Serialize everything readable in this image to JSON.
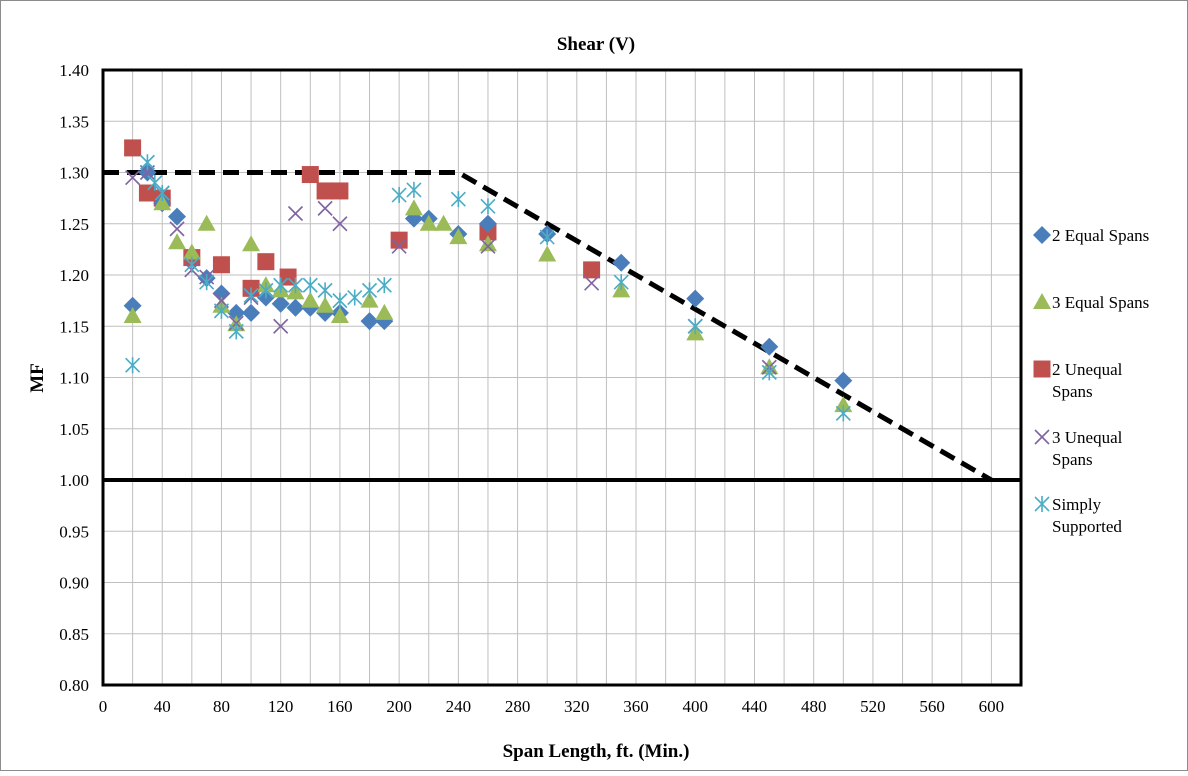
{
  "chart_data": {
    "type": "scatter",
    "title": "Shear (V)",
    "xlabel": "Span Length, ft. (Min.)",
    "ylabel": "MF",
    "xlim": [
      0,
      620
    ],
    "ylim": [
      0.8,
      1.4
    ],
    "x_ticks": [
      "0",
      "40",
      "80",
      "120",
      "160",
      "200",
      "240",
      "280",
      "320",
      "360",
      "400",
      "440",
      "480",
      "520",
      "560",
      "600"
    ],
    "y_ticks": [
      "0.80",
      "0.85",
      "0.90",
      "0.95",
      "1.00",
      "1.05",
      "1.10",
      "1.15",
      "1.20",
      "1.25",
      "1.30",
      "1.35",
      "1.40"
    ],
    "grid": true,
    "legend_position": "right",
    "series": [
      {
        "name": "2 Equal Spans",
        "marker": "diamond",
        "color": "#4A7EBB",
        "points": [
          [
            20,
            1.17
          ],
          [
            30,
            1.3
          ],
          [
            40,
            1.27
          ],
          [
            50,
            1.257
          ],
          [
            70,
            1.197
          ],
          [
            80,
            1.182
          ],
          [
            90,
            1.163
          ],
          [
            100,
            1.163
          ],
          [
            110,
            1.178
          ],
          [
            120,
            1.172
          ],
          [
            130,
            1.168
          ],
          [
            140,
            1.168
          ],
          [
            150,
            1.163
          ],
          [
            160,
            1.163
          ],
          [
            180,
            1.155
          ],
          [
            190,
            1.155
          ],
          [
            210,
            1.255
          ],
          [
            220,
            1.255
          ],
          [
            240,
            1.24
          ],
          [
            260,
            1.25
          ],
          [
            300,
            1.24
          ],
          [
            350,
            1.212
          ],
          [
            400,
            1.177
          ],
          [
            450,
            1.13
          ],
          [
            500,
            1.097
          ]
        ]
      },
      {
        "name": "3 Equal Spans",
        "marker": "triangle",
        "color": "#9BBB59",
        "points": [
          [
            20,
            1.16
          ],
          [
            40,
            1.27
          ],
          [
            50,
            1.232
          ],
          [
            60,
            1.222
          ],
          [
            70,
            1.25
          ],
          [
            80,
            1.17
          ],
          [
            90,
            1.152
          ],
          [
            100,
            1.23
          ],
          [
            110,
            1.19
          ],
          [
            120,
            1.185
          ],
          [
            130,
            1.183
          ],
          [
            140,
            1.175
          ],
          [
            150,
            1.17
          ],
          [
            160,
            1.16
          ],
          [
            180,
            1.175
          ],
          [
            190,
            1.163
          ],
          [
            210,
            1.265
          ],
          [
            220,
            1.25
          ],
          [
            230,
            1.25
          ],
          [
            240,
            1.237
          ],
          [
            260,
            1.23
          ],
          [
            300,
            1.22
          ],
          [
            350,
            1.185
          ],
          [
            400,
            1.143
          ],
          [
            450,
            1.11
          ],
          [
            500,
            1.073
          ]
        ]
      },
      {
        "name": "2 Unequal Spans",
        "marker": "square",
        "color": "#C0504D",
        "points": [
          [
            20,
            1.324
          ],
          [
            30,
            1.28
          ],
          [
            40,
            1.275
          ],
          [
            60,
            1.217
          ],
          [
            80,
            1.21
          ],
          [
            100,
            1.187
          ],
          [
            110,
            1.213
          ],
          [
            125,
            1.198
          ],
          [
            140,
            1.298
          ],
          [
            150,
            1.282
          ],
          [
            160,
            1.282
          ],
          [
            200,
            1.234
          ],
          [
            260,
            1.242
          ],
          [
            330,
            1.205
          ]
        ]
      },
      {
        "name": "3 Unequal Spans",
        "marker": "x",
        "color": "#8064A2",
        "points": [
          [
            20,
            1.295
          ],
          [
            30,
            1.3
          ],
          [
            40,
            1.28
          ],
          [
            50,
            1.245
          ],
          [
            60,
            1.205
          ],
          [
            70,
            1.198
          ],
          [
            80,
            1.175
          ],
          [
            90,
            1.153
          ],
          [
            100,
            1.178
          ],
          [
            120,
            1.15
          ],
          [
            130,
            1.26
          ],
          [
            150,
            1.265
          ],
          [
            160,
            1.25
          ],
          [
            200,
            1.228
          ],
          [
            260,
            1.228
          ],
          [
            330,
            1.192
          ],
          [
            400,
            1.15
          ],
          [
            450,
            1.11
          ]
        ]
      },
      {
        "name": "Simply Supported",
        "marker": "asterisk",
        "color": "#4BACC6",
        "points": [
          [
            20,
            1.112
          ],
          [
            30,
            1.31
          ],
          [
            35,
            1.29
          ],
          [
            40,
            1.28
          ],
          [
            60,
            1.21
          ],
          [
            70,
            1.193
          ],
          [
            80,
            1.165
          ],
          [
            90,
            1.145
          ],
          [
            100,
            1.18
          ],
          [
            110,
            1.185
          ],
          [
            120,
            1.19
          ],
          [
            130,
            1.19
          ],
          [
            140,
            1.19
          ],
          [
            150,
            1.185
          ],
          [
            160,
            1.175
          ],
          [
            170,
            1.178
          ],
          [
            180,
            1.185
          ],
          [
            190,
            1.19
          ],
          [
            200,
            1.278
          ],
          [
            210,
            1.283
          ],
          [
            240,
            1.274
          ],
          [
            260,
            1.267
          ],
          [
            300,
            1.237
          ],
          [
            350,
            1.193
          ],
          [
            400,
            1.15
          ],
          [
            450,
            1.105
          ],
          [
            500,
            1.065
          ]
        ]
      }
    ],
    "reference_lines": [
      {
        "style": "dashed",
        "color": "#000000",
        "points": [
          [
            0,
            1.3
          ],
          [
            240,
            1.3
          ],
          [
            600,
            1.0
          ]
        ]
      },
      {
        "style": "solid",
        "color": "#000000",
        "points": [
          [
            0,
            1.0
          ],
          [
            620,
            1.0
          ]
        ]
      }
    ]
  }
}
